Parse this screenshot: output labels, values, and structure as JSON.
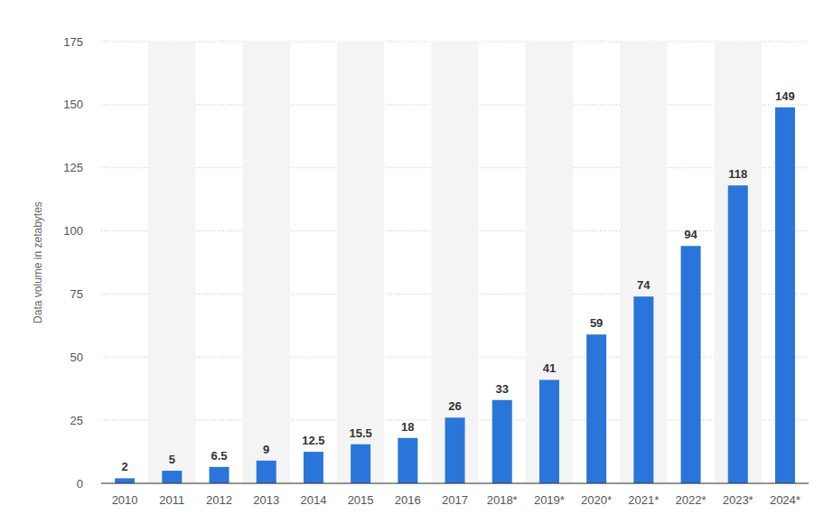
{
  "chart_data": {
    "type": "bar",
    "y_label": "Data volume in zetabytes",
    "categories": [
      "2010",
      "2011",
      "2012",
      "2013",
      "2014",
      "2015",
      "2016",
      "2017",
      "2018*",
      "2019*",
      "2020*",
      "2021*",
      "2022*",
      "2023*",
      "2024*"
    ],
    "values": [
      2,
      5,
      6.5,
      9,
      12.5,
      15.5,
      18,
      26,
      33,
      41,
      59,
      74,
      94,
      118,
      149
    ],
    "color": "#2a75d9",
    "ylim": [
      0,
      175
    ],
    "yticks": [
      0,
      25,
      50,
      75,
      100,
      125,
      150,
      175
    ],
    "grid": true,
    "data_labels": true
  }
}
